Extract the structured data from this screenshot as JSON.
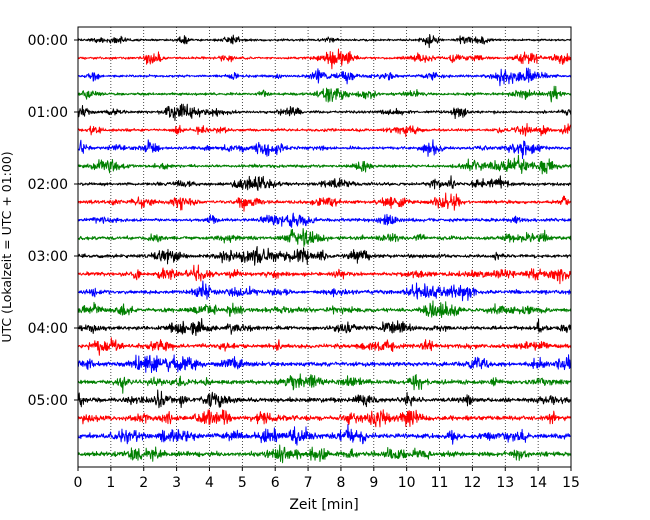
{
  "chart_data": {
    "type": "line",
    "xlabel": "Zeit  [min]",
    "ylabel": "UTC (Lokalzeit = UTC + 01:00)",
    "xlim": [
      0,
      15
    ],
    "x_ticks": [
      "0",
      "1",
      "2",
      "3",
      "4",
      "5",
      "6",
      "7",
      "8",
      "9",
      "10",
      "11",
      "12",
      "13",
      "14",
      "15"
    ],
    "y_ticks": [
      "00:00",
      "01:00",
      "02:00",
      "03:00",
      "04:00",
      "05:00"
    ],
    "grid": "vertical dotted lines at each minute",
    "trace_interval_minutes": 15,
    "trace_count": 24,
    "trace_colors": [
      "#000000",
      "#ff0000",
      "#0000ff",
      "#008000"
    ],
    "series": [
      {
        "start": "00:00",
        "color": "#000000"
      },
      {
        "start": "00:15",
        "color": "#ff0000"
      },
      {
        "start": "00:30",
        "color": "#0000ff"
      },
      {
        "start": "00:45",
        "color": "#008000"
      },
      {
        "start": "01:00",
        "color": "#000000"
      },
      {
        "start": "01:15",
        "color": "#ff0000"
      },
      {
        "start": "01:30",
        "color": "#0000ff"
      },
      {
        "start": "01:45",
        "color": "#008000"
      },
      {
        "start": "02:00",
        "color": "#000000"
      },
      {
        "start": "02:15",
        "color": "#ff0000"
      },
      {
        "start": "02:30",
        "color": "#0000ff"
      },
      {
        "start": "02:45",
        "color": "#008000"
      },
      {
        "start": "03:00",
        "color": "#000000"
      },
      {
        "start": "03:15",
        "color": "#ff0000"
      },
      {
        "start": "03:30",
        "color": "#0000ff"
      },
      {
        "start": "03:45",
        "color": "#008000"
      },
      {
        "start": "04:00",
        "color": "#000000"
      },
      {
        "start": "04:15",
        "color": "#ff0000"
      },
      {
        "start": "04:30",
        "color": "#0000ff"
      },
      {
        "start": "04:45",
        "color": "#008000"
      },
      {
        "start": "05:00",
        "color": "#000000"
      },
      {
        "start": "05:15",
        "color": "#ff0000"
      },
      {
        "start": "05:30",
        "color": "#0000ff"
      },
      {
        "start": "05:45",
        "color": "#008000"
      }
    ]
  }
}
